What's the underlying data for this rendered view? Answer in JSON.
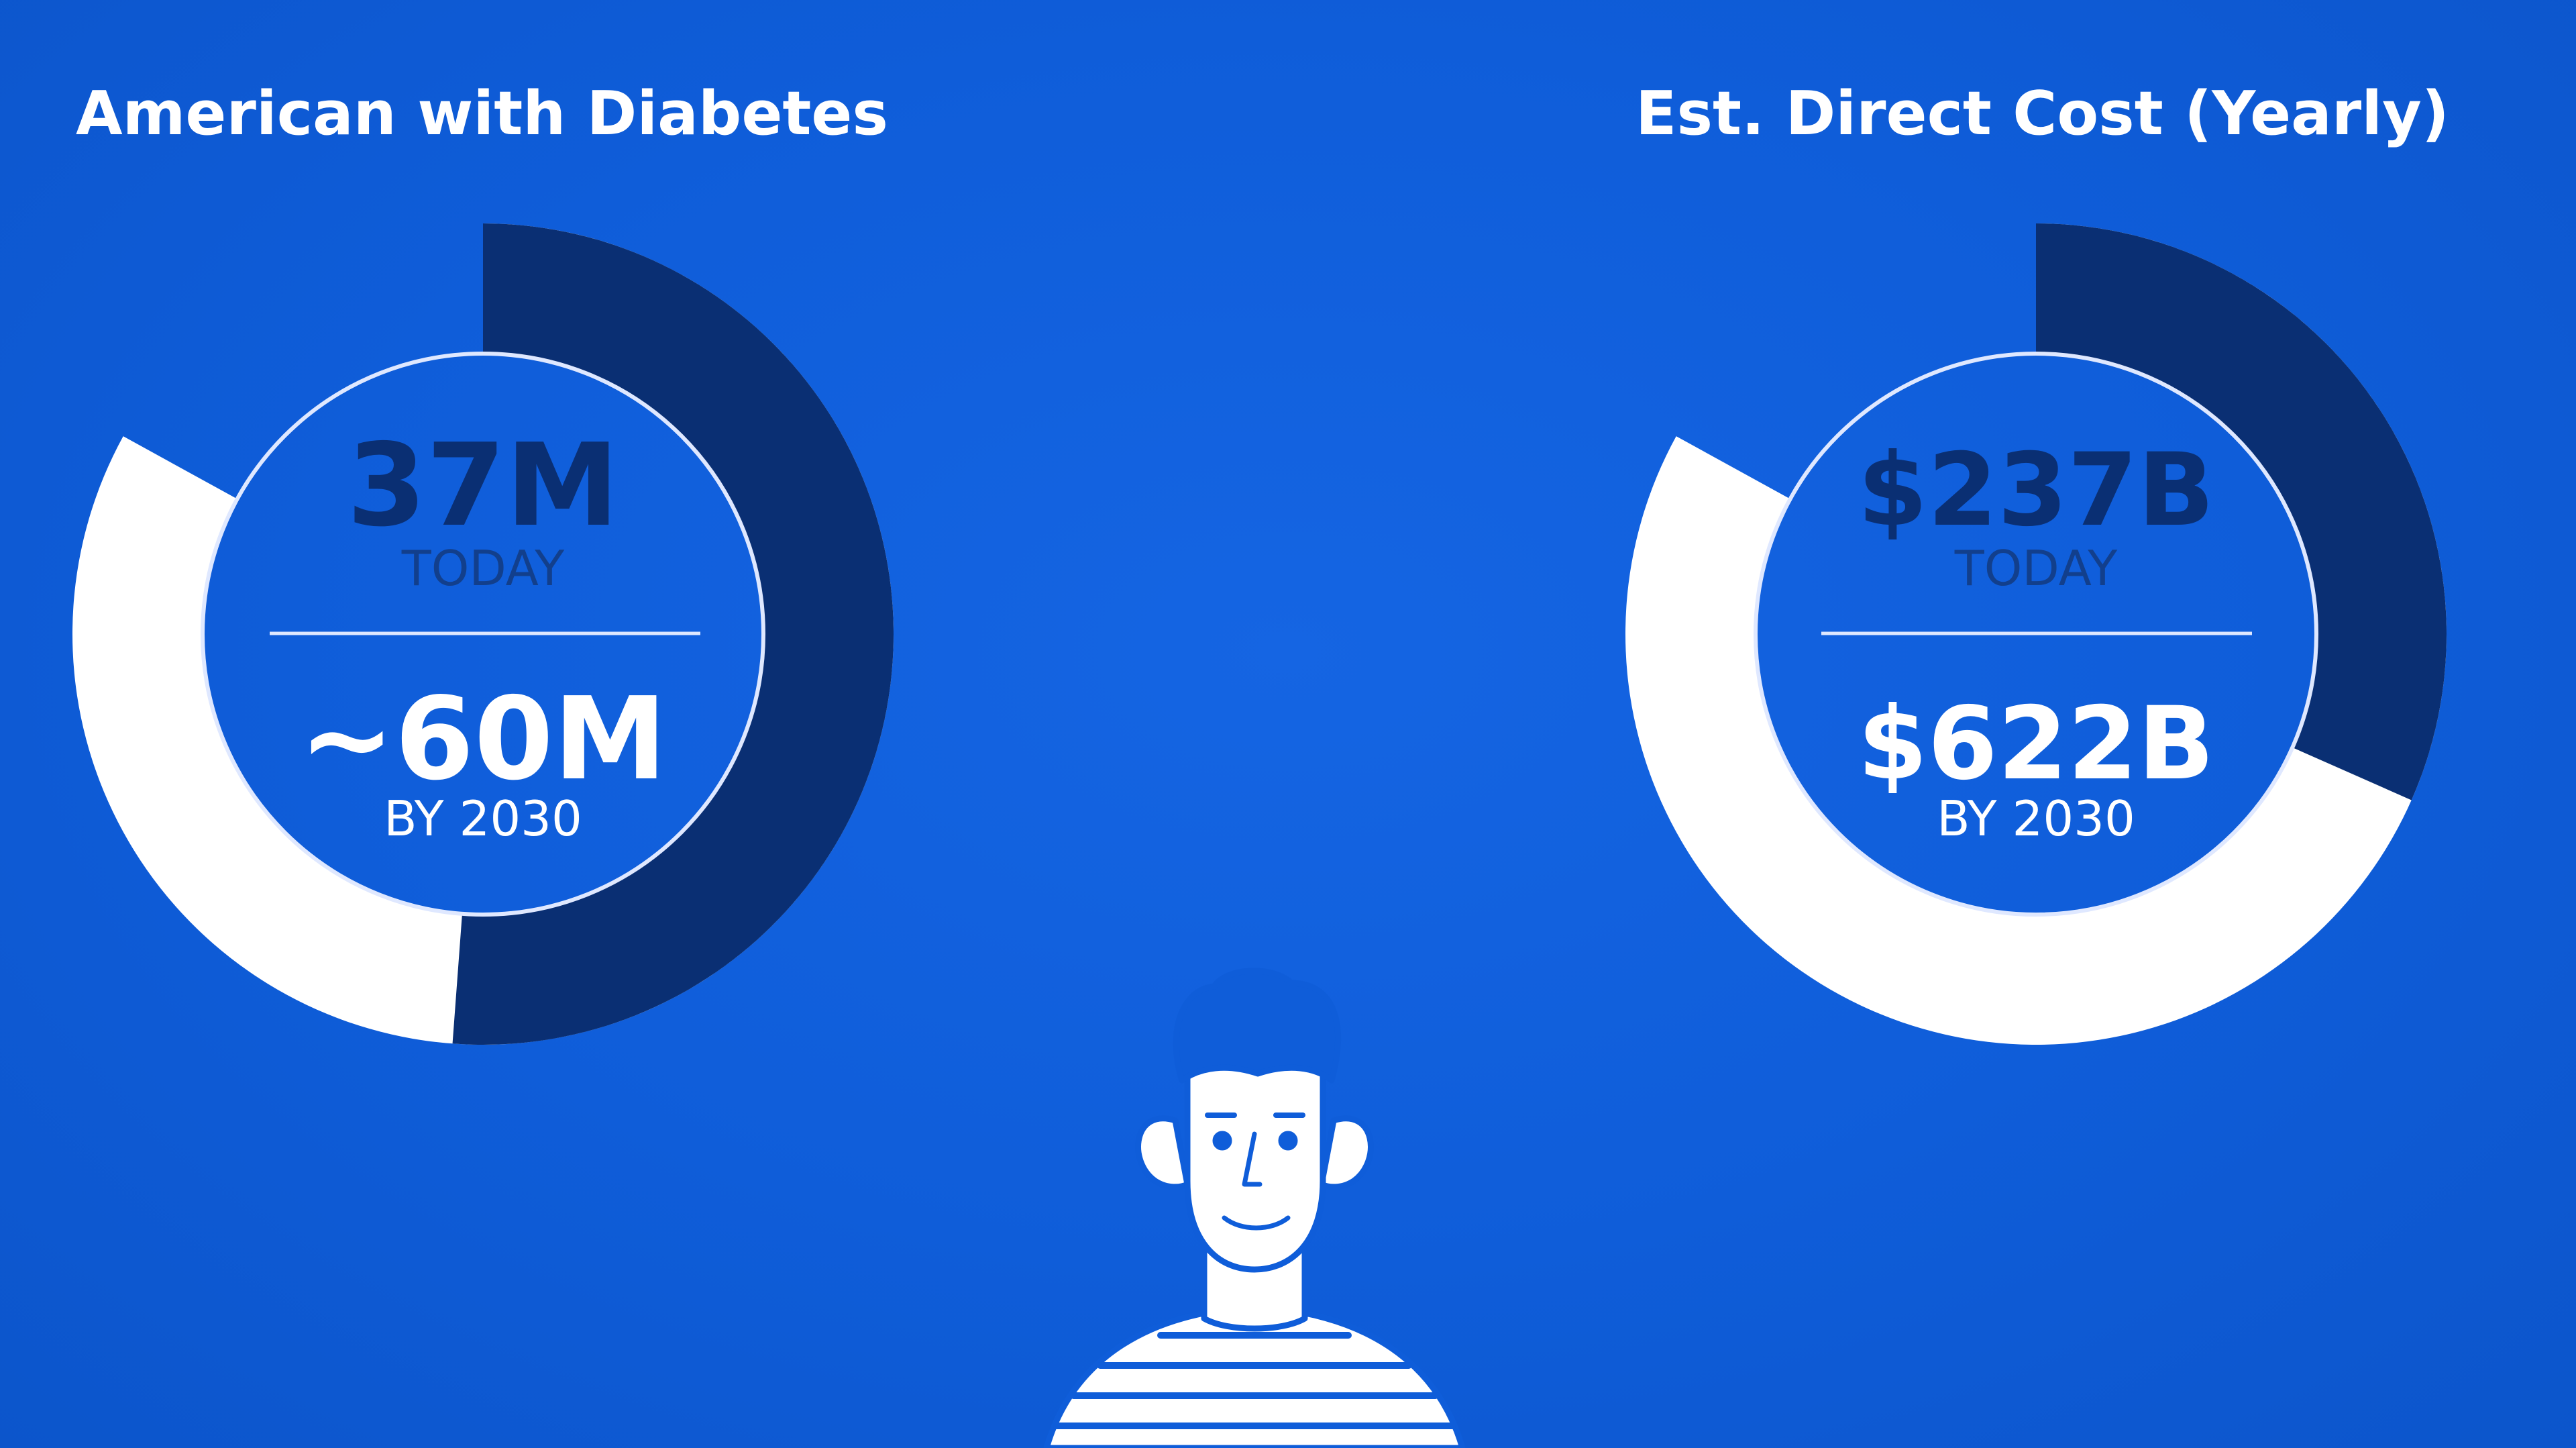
{
  "colors": {
    "background": "#0f5dd9",
    "today_segment": "#0a2f73",
    "future_segment": "#ffffff",
    "today_value_text": "#0a2f73",
    "today_label_text": "#123f8c",
    "future_text": "#ffffff",
    "outline": "#dfe8ff"
  },
  "chart_data": [
    {
      "type": "pie",
      "title": "American with Diabetes",
      "today": {
        "value_text": "37M",
        "label": "TODAY",
        "value": 37
      },
      "future": {
        "value_text": "~60M",
        "label": "BY 2030",
        "value": 60
      }
    },
    {
      "type": "pie",
      "title": "Est. Direct Cost (Yearly)",
      "today": {
        "value_text": "$237B",
        "label": "TODAY",
        "value": 237
      },
      "future": {
        "value_text": "$622B",
        "label": "BY 2030",
        "value": 622
      }
    }
  ],
  "illustration": {
    "icon": "person-striped-shirt-icon"
  }
}
